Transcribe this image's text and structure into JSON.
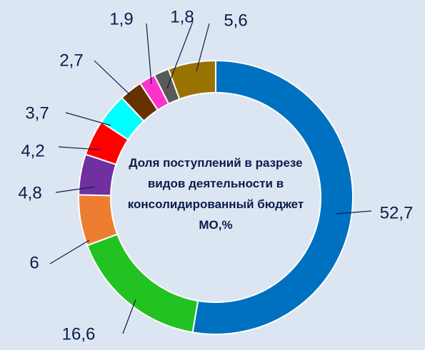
{
  "chart_data": {
    "type": "donut",
    "title": "Доля поступлений в разрезе видов деятельности в консолидированный бюджет МО,%",
    "values": [
      52.7,
      16.6,
      6,
      4.8,
      4.2,
      3.7,
      2.7,
      1.9,
      1.8,
      5.6
    ],
    "value_labels": [
      "52,7",
      "16,6",
      "6",
      "4,8",
      "4,2",
      "3,7",
      "2,7",
      "1,9",
      "1,8",
      "5,6"
    ],
    "colors": [
      "#0070c0",
      "#22c222",
      "#ed7d31",
      "#7030a0",
      "#ff0000",
      "#00ffff",
      "#663300",
      "#ff33cc",
      "#595959",
      "#997300"
    ]
  }
}
